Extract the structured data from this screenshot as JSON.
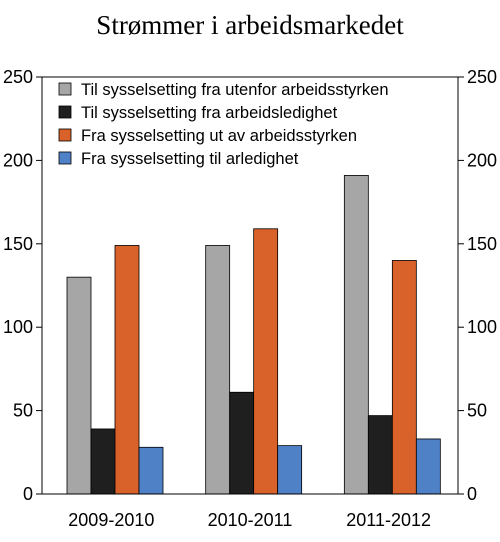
{
  "chart_data": {
    "type": "bar",
    "title": "Strømmer i arbeidsmarkedet",
    "categories": [
      "2009-2010",
      "2010-2011",
      "2011-2012"
    ],
    "series": [
      {
        "name": "Til sysselsetting fra utenfor arbeidsstyrken",
        "color": "#a6a6a6",
        "values": [
          130,
          149,
          191
        ]
      },
      {
        "name": "Til sysselsetting fra arbeidsledighet",
        "color": "#1f1f1f",
        "values": [
          39,
          61,
          47
        ]
      },
      {
        "name": "Fra sysselsetting ut av arbeidsstyrken",
        "color": "#d9622b",
        "values": [
          149,
          159,
          140
        ]
      },
      {
        "name": "Fra sysselsetting til arledighet",
        "color": "#4f81c7",
        "values": [
          28,
          29,
          33
        ]
      }
    ],
    "ylim": [
      0,
      250
    ],
    "yticks": [
      0,
      50,
      100,
      150,
      200,
      250
    ],
    "grid": false,
    "legend": "top-left"
  }
}
